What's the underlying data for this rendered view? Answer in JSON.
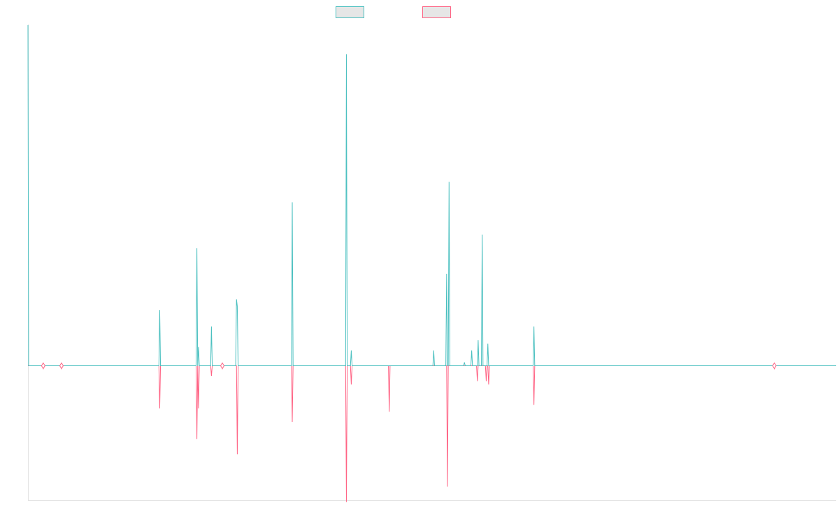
{
  "chart_data": {
    "type": "line",
    "title": "",
    "xlabel": "",
    "ylabel": "",
    "grid": false,
    "legend_placement": "top-center",
    "x_range": [
      0,
      1000
    ],
    "ylim": [
      -40,
      100
    ],
    "colors": {
      "series_1": "#4bc0c0",
      "series_2": "#ff6384",
      "axis": "#e3e3e3",
      "legend_fill": "#e6e6e6"
    },
    "series": [
      {
        "color": "#4bc0c0",
        "points": [
          [
            0,
            100
          ],
          [
            0.8,
            0
          ],
          [
            18.4,
            0
          ],
          [
            18.9,
            0
          ],
          [
            19.4,
            0
          ],
          [
            41,
            0
          ],
          [
            41.5,
            0
          ],
          [
            42,
            0
          ],
          [
            162,
            0
          ],
          [
            163,
            16.3
          ],
          [
            164,
            0
          ],
          [
            208,
            0
          ],
          [
            209,
            34.5
          ],
          [
            210,
            0
          ],
          [
            211,
            5.5
          ],
          [
            212,
            0
          ],
          [
            226,
            0
          ],
          [
            227,
            11.5
          ],
          [
            228,
            0
          ],
          [
            240,
            0
          ],
          [
            240.5,
            0
          ],
          [
            241,
            0
          ],
          [
            257,
            0
          ],
          [
            258,
            19.5
          ],
          [
            259,
            17.5
          ],
          [
            260,
            0
          ],
          [
            326,
            0
          ],
          [
            327,
            48
          ],
          [
            328,
            0
          ],
          [
            393,
            0
          ],
          [
            394,
            91.5
          ],
          [
            395,
            0
          ],
          [
            399,
            0
          ],
          [
            400,
            4.5
          ],
          [
            401,
            0
          ],
          [
            501,
            0
          ],
          [
            502,
            4.5
          ],
          [
            503,
            0
          ],
          [
            517,
            0
          ],
          [
            518,
            27
          ],
          [
            519,
            0
          ],
          [
            520,
            0
          ],
          [
            521,
            54
          ],
          [
            522,
            0
          ],
          [
            539,
            0
          ],
          [
            540,
            1
          ],
          [
            541,
            0
          ],
          [
            548,
            0
          ],
          [
            549,
            4.5
          ],
          [
            550,
            0
          ],
          [
            556,
            0
          ],
          [
            557,
            7.5
          ],
          [
            558,
            0
          ],
          [
            561,
            0
          ],
          [
            562,
            38.5
          ],
          [
            563,
            0
          ],
          [
            568,
            0
          ],
          [
            569,
            6.5
          ],
          [
            570,
            0
          ],
          [
            625,
            0
          ],
          [
            626,
            11.5
          ],
          [
            627,
            0
          ],
          [
            923,
            0
          ],
          [
            923.5,
            0
          ],
          [
            924,
            0
          ],
          [
            1000,
            0
          ]
        ]
      },
      {
        "color": "#ff6384",
        "points": [
          [
            0,
            0
          ],
          [
            18.4,
            0
          ],
          [
            18.9,
            -1
          ],
          [
            19.4,
            0
          ],
          [
            41,
            0
          ],
          [
            41.5,
            -1
          ],
          [
            42,
            0
          ],
          [
            162,
            0
          ],
          [
            163,
            -12.5
          ],
          [
            164,
            0
          ],
          [
            208,
            0
          ],
          [
            209,
            -21.5
          ],
          [
            210,
            0
          ],
          [
            211,
            -12.5
          ],
          [
            212,
            0
          ],
          [
            226,
            0
          ],
          [
            227,
            -3
          ],
          [
            228,
            0
          ],
          [
            240,
            0
          ],
          [
            240.5,
            -1
          ],
          [
            241,
            0
          ],
          [
            258,
            0
          ],
          [
            259,
            -26
          ],
          [
            260,
            0
          ],
          [
            326,
            0
          ],
          [
            327,
            -16.5
          ],
          [
            328,
            0
          ],
          [
            393,
            0
          ],
          [
            394,
            -40
          ],
          [
            395,
            0
          ],
          [
            399,
            0
          ],
          [
            400,
            -5.5
          ],
          [
            401,
            0
          ],
          [
            446,
            0
          ],
          [
            447,
            -13.5
          ],
          [
            448,
            0
          ],
          [
            518,
            0
          ],
          [
            519,
            -35.5
          ],
          [
            520,
            0
          ],
          [
            555,
            0
          ],
          [
            556,
            -4.5
          ],
          [
            557,
            0
          ],
          [
            566,
            0
          ],
          [
            567,
            -4.5
          ],
          [
            568,
            0
          ],
          [
            569,
            0
          ],
          [
            570,
            -5.5
          ],
          [
            571,
            0
          ],
          [
            625,
            0
          ],
          [
            626,
            -11.5
          ],
          [
            627,
            0
          ],
          [
            923,
            0
          ],
          [
            923.5,
            -1
          ],
          [
            924,
            0
          ],
          [
            1000,
            0
          ]
        ]
      }
    ],
    "markers": [
      18.9,
      41.5,
      240.5,
      923.5
    ]
  }
}
